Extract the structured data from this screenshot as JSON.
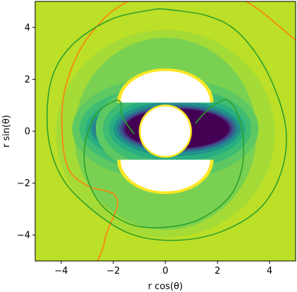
{
  "chart_data": {
    "type": "contour",
    "title": "",
    "xlabel": "r cos(θ)",
    "ylabel": "r sin(θ)",
    "xlim": [
      -5,
      5
    ],
    "ylim": [
      -5,
      5
    ],
    "xticks": [
      "−4",
      "−2",
      "0",
      "2",
      "4"
    ],
    "yticks": [
      "−4",
      "−2",
      "0",
      "2",
      "4"
    ],
    "xtick_values": [
      -4,
      -2,
      0,
      2,
      4
    ],
    "ytick_values": [
      -4,
      -2,
      0,
      2,
      4
    ],
    "grid": false,
    "colormap": "viridis",
    "colors": {
      "background": "#bcdf27",
      "level_1": "#a5db36",
      "level_2": "#7ad151",
      "level_3": "#5ec962",
      "level_4": "#3fbc73",
      "level_5": "#28ae80",
      "level_6": "#1f9e89",
      "level_7": "#21918c",
      "level_8": "#26828e",
      "level_9": "#2c728e",
      "level_10": "#33638d",
      "level_11": "#3b528b",
      "level_12": "#472d7b",
      "core": "#440154",
      "rim_yellow": "#fde725",
      "hole": "#ffffff",
      "orange_curve": "#ff7f0e",
      "green_curve": "#2ca02c"
    },
    "regions": [
      {
        "name": "upper-hole",
        "shape": "half-ellipse",
        "center": [
          0,
          1.5
        ],
        "radii": [
          1.8,
          1.3
        ]
      },
      {
        "name": "lower-hole",
        "shape": "half-ellipse",
        "center": [
          0,
          -1.5
        ],
        "radii": [
          1.8,
          1.3
        ]
      },
      {
        "name": "center-hole",
        "shape": "circle",
        "center": [
          0,
          0
        ],
        "radius": 1.0
      }
    ],
    "series": [
      {
        "color": "#ff7f0e",
        "points": [
          [
            -1.45,
            5.0
          ],
          [
            -2.3,
            4.4
          ],
          [
            -3.3,
            3.1
          ],
          [
            -3.9,
            1.4
          ],
          [
            -3.95,
            -0.3
          ],
          [
            -3.7,
            -1.5
          ],
          [
            -3.0,
            -2.1
          ],
          [
            -2.3,
            -2.3
          ],
          [
            -1.95,
            -2.45
          ],
          [
            -1.85,
            -2.9
          ],
          [
            -2.25,
            -3.9
          ],
          [
            -2.4,
            -4.5
          ],
          [
            -2.6,
            -5.0
          ]
        ]
      },
      {
        "color": "#ff7f0e",
        "points": [
          [
            3.1,
            5.0
          ],
          [
            3.7,
            4.6
          ],
          [
            4.3,
            4.1
          ],
          [
            5.0,
            3.5
          ]
        ]
      },
      {
        "color": "#2ca02c",
        "points": [
          [
            0.0,
            4.7
          ],
          [
            1.6,
            4.45
          ],
          [
            2.8,
            3.8
          ],
          [
            3.9,
            2.3
          ],
          [
            4.6,
            0.3
          ],
          [
            4.5,
            -1.4
          ],
          [
            3.7,
            -2.9
          ],
          [
            2.2,
            -3.85
          ],
          [
            0.5,
            -4.2
          ],
          [
            -1.2,
            -4.0
          ],
          [
            -2.6,
            -3.2
          ],
          [
            -3.9,
            -1.9
          ],
          [
            -4.5,
            -0.2
          ],
          [
            -4.4,
            1.9
          ],
          [
            -3.6,
            3.3
          ],
          [
            -2.1,
            4.3
          ],
          [
            -0.5,
            4.68
          ],
          [
            0.0,
            4.7
          ]
        ]
      },
      {
        "color": "#2ca02c",
        "points": [
          [
            -1.2,
            -0.1
          ],
          [
            -1.5,
            0.3
          ],
          [
            -1.7,
            0.7
          ],
          [
            -1.7,
            1.1
          ],
          [
            -2.0,
            1.15
          ],
          [
            -2.7,
            0.6
          ],
          [
            -3.1,
            -0.6
          ],
          [
            -3.0,
            -1.8
          ],
          [
            -2.4,
            -2.9
          ],
          [
            -1.3,
            -3.6
          ],
          [
            0.0,
            -3.7
          ],
          [
            1.3,
            -3.4
          ],
          [
            2.4,
            -2.6
          ],
          [
            2.9,
            -1.6
          ],
          [
            3.0,
            -0.4
          ],
          [
            2.8,
            0.6
          ],
          [
            2.4,
            1.2
          ],
          [
            1.95,
            1.05
          ],
          [
            1.5,
            0.7
          ],
          [
            1.15,
            0.3
          ]
        ]
      }
    ]
  }
}
